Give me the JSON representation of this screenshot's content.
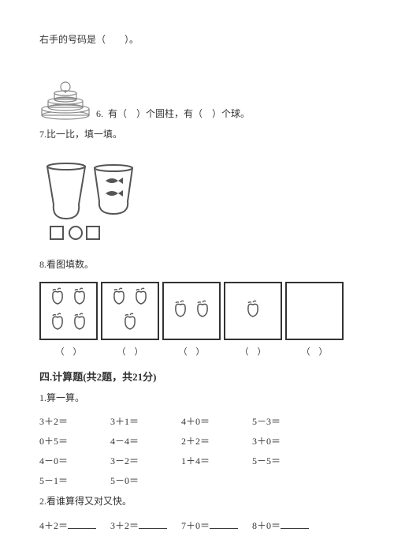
{
  "q_top": "右手的号码是（　　）。",
  "q6": {
    "num": "6.",
    "text_a": "有（　）个圆柱，有（　）个球。"
  },
  "q7": "7.比一比，填一填。",
  "q8": {
    "title": "8.看图填数。",
    "counts": [
      4,
      3,
      2,
      1,
      0
    ],
    "label": "（　）"
  },
  "section4": {
    "title": "四.计算题(共2题，共21分)",
    "sub1": "1.算一算。",
    "rows": [
      [
        "3＋2＝",
        "3＋1＝",
        "4＋0＝",
        "5－3＝"
      ],
      [
        "0＋5＝",
        "4－4＝",
        "2＋2＝",
        "3＋0＝"
      ],
      [
        "4－0＝",
        "3－2＝",
        "1＋4＝",
        "5－5＝"
      ],
      [
        "5－1＝",
        "5－0＝",
        "",
        ""
      ]
    ],
    "sub2": "2.看谁算得又对又快。",
    "row2": [
      "4＋2＝",
      "3＋2＝",
      "7＋0＝",
      "8＋0＝"
    ]
  },
  "colors": {
    "text": "#333333",
    "bg": "#ffffff",
    "stroke": "#666666"
  }
}
